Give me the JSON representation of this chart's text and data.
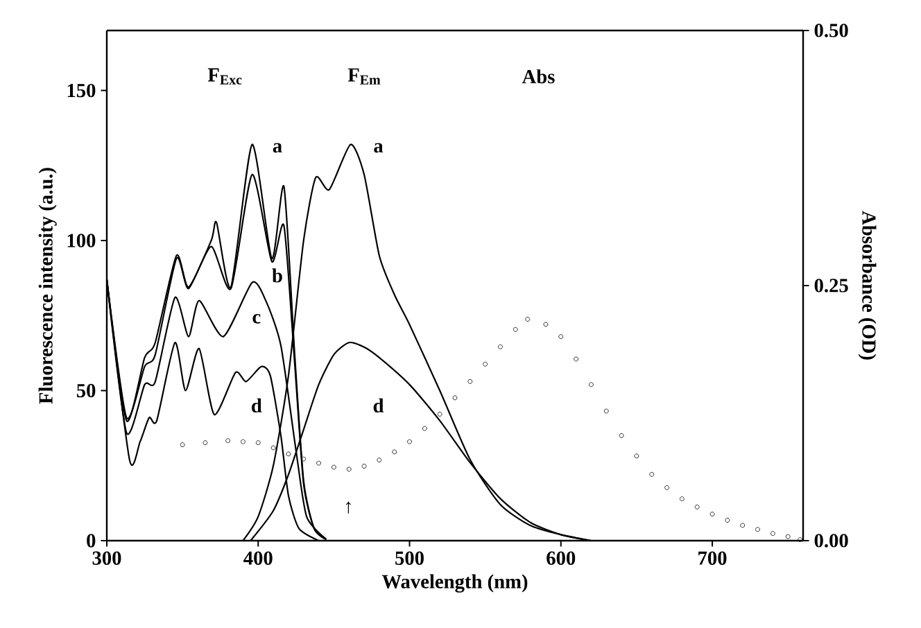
{
  "chart_data": {
    "type": "line",
    "xlabel": "Wavelength (nm)",
    "ylabel": "Fluorescence intensity (a.u.)",
    "y2label": "Absorbance (OD)",
    "xlim": [
      300,
      760
    ],
    "xticks": [
      300,
      400,
      500,
      600,
      700
    ],
    "ylim": [
      0,
      170
    ],
    "yticks": [
      0,
      50,
      100,
      150
    ],
    "y2lim": [
      0,
      0.5
    ],
    "y2ticks": [
      {
        "value": 0,
        "label": "0.00"
      },
      {
        "value": 0.25,
        "label": "0.25"
      },
      {
        "value": 0.5,
        "label": "0.50"
      }
    ],
    "grid": false,
    "marker": "none",
    "line_style": "solid",
    "series": [
      {
        "color": "#000000",
        "x": [
          300,
          313,
          325,
          332,
          346,
          354,
          369,
          372.5,
          382,
          396,
          409,
          417,
          424,
          430,
          437,
          445
        ],
        "values": [
          87,
          40,
          61,
          66,
          95,
          84.5,
          100,
          106,
          84.5,
          132,
          94,
          118,
          63,
          20,
          4,
          0.4
        ]
      },
      {
        "color": "#000000",
        "x": [
          300,
          313,
          325,
          332,
          346,
          354,
          369,
          382,
          396,
          409,
          417,
          424,
          430,
          437,
          445
        ],
        "values": [
          87,
          41,
          58,
          62,
          94,
          84,
          98,
          84,
          122,
          93,
          105,
          60,
          19,
          4,
          0.4
        ]
      },
      {
        "color": "#000000",
        "x": [
          300,
          313,
          325,
          332,
          345,
          354,
          361,
          377,
          396,
          405,
          415,
          425,
          432,
          445
        ],
        "values": [
          87,
          36,
          52,
          53,
          81,
          68,
          80,
          68,
          86,
          80,
          65,
          30,
          8,
          0.5
        ]
      },
      {
        "color": "#000000",
        "x": [
          300,
          315,
          322,
          328,
          333,
          345,
          352,
          361,
          371,
          385,
          392,
          402,
          408,
          415,
          420,
          427,
          440
        ],
        "values": [
          87,
          27,
          33,
          41,
          40,
          66,
          50,
          64,
          42,
          56,
          53,
          58,
          55,
          35,
          15,
          4,
          0
        ]
      },
      {
        "color": "#000000",
        "x": [
          390,
          400,
          410,
          420,
          430,
          438,
          447,
          461,
          470,
          480,
          490,
          500,
          520,
          540,
          560,
          580,
          600,
          620
        ],
        "values": [
          0,
          8,
          25,
          55,
          100,
          121,
          117,
          132,
          122,
          95,
          82,
          72,
          50,
          27,
          12,
          5,
          2,
          0
        ]
      },
      {
        "color": "#000000",
        "x": [
          395,
          410,
          420,
          430,
          440,
          450,
          460,
          470,
          480,
          500,
          520,
          540,
          560,
          580,
          600,
          620
        ],
        "values": [
          0,
          10,
          22,
          37,
          52,
          62,
          66,
          64.5,
          61,
          52,
          40,
          26,
          14,
          6,
          2,
          0
        ]
      },
      {
        "color": "#000000",
        "axis": "y2",
        "type": "scatter",
        "marker": "circle",
        "x": [
          350,
          365,
          380,
          390,
          400,
          410,
          420,
          430,
          440,
          450,
          460,
          470,
          480,
          490,
          500,
          510,
          520,
          530,
          540,
          550,
          560,
          570,
          578,
          590,
          600,
          610,
          620,
          630,
          640,
          650,
          660,
          670,
          680,
          690,
          700,
          710,
          720,
          730,
          740,
          750,
          758
        ],
        "values": [
          0.094,
          0.096,
          0.098,
          0.097,
          0.096,
          0.091,
          0.085,
          0.08,
          0.076,
          0.072,
          0.07,
          0.073,
          0.079,
          0.087,
          0.097,
          0.11,
          0.124,
          0.14,
          0.156,
          0.173,
          0.19,
          0.207,
          0.217,
          0.212,
          0.2,
          0.178,
          0.153,
          0.127,
          0.103,
          0.083,
          0.065,
          0.052,
          0.041,
          0.033,
          0.026,
          0.02,
          0.015,
          0.011,
          0.007,
          0.004,
          0.001
        ]
      }
    ],
    "annotations": [
      "F$_{Exc}$",
      "F$_{Em}$",
      "Abs",
      "a",
      "b",
      "c",
      "d",
      "a",
      "d",
      "↑"
    ]
  }
}
